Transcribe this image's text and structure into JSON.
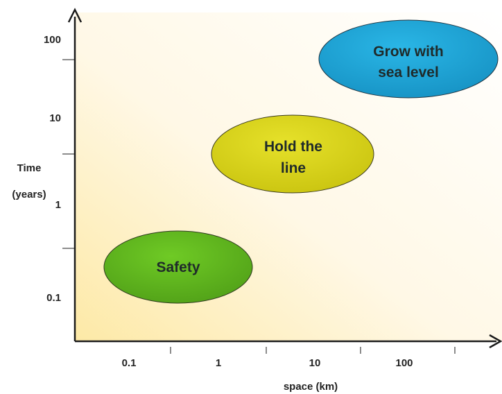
{
  "axes": {
    "y_title_line1": "Time",
    "y_title_line2": "(years)",
    "x_title": "space (km)",
    "y_ticks": [
      "100",
      "10",
      "1",
      "0.1"
    ],
    "x_ticks": [
      "0.1",
      "1",
      "10",
      "100"
    ]
  },
  "bubbles": [
    {
      "id": "safety",
      "lines": [
        "Safety"
      ],
      "color": "#5fb51f"
    },
    {
      "id": "hold",
      "lines": [
        "Hold the",
        "line"
      ],
      "color": "#d8d41a"
    },
    {
      "id": "grow",
      "lines": [
        "Grow with",
        "sea level"
      ],
      "color": "#1ca3d6"
    }
  ],
  "colors": {
    "axis": "#1a1a1a",
    "background_gradient_start": "#fde9a6",
    "background_gradient_end": "#ffffff"
  }
}
